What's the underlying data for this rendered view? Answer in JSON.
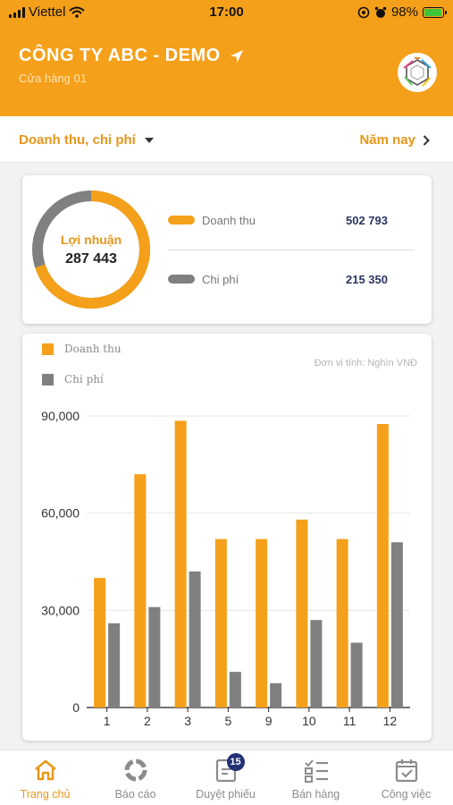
{
  "status_bar": {
    "carrier": "Viettel",
    "time": "17:00",
    "battery": "98%"
  },
  "header": {
    "company": "CÔNG TY ABC - DEMO",
    "store": "Cửa hàng 01"
  },
  "filter": {
    "metric": "Doanh thu, chi phí",
    "period": "Năm nay"
  },
  "summary": {
    "profit_label": "Lợi nhuận",
    "profit_value": "287 443",
    "revenue_label": "Doanh thu",
    "revenue_value": "502 793",
    "cost_label": "Chi phí",
    "cost_value": "215 350"
  },
  "colors": {
    "revenue": "#f5a01a",
    "cost": "#808080",
    "accent": "#e8961a",
    "badge": "#233275"
  },
  "chart_data": {
    "type": "bar",
    "unit_note": "Đơn vị tính: Nghìn VNĐ",
    "categories": [
      "1",
      "2",
      "3",
      "5",
      "9",
      "10",
      "11",
      "12"
    ],
    "series": [
      {
        "name": "Doanh thu",
        "color": "#f5a01a",
        "values": [
          40000,
          72000,
          88500,
          52000,
          52000,
          58000,
          52000,
          87500
        ]
      },
      {
        "name": "Chi phí",
        "color": "#808080",
        "values": [
          26000,
          31000,
          42000,
          11000,
          7500,
          27000,
          20000,
          51000
        ]
      }
    ],
    "yticks": [
      "0",
      "30,000",
      "60,000",
      "90,000"
    ],
    "ytick_values": [
      0,
      30000,
      60000,
      90000
    ],
    "ylim": [
      0,
      90000
    ],
    "legend": "top-left",
    "grid": true
  },
  "tabs": [
    {
      "label": "Trang chủ",
      "icon": "home-icon",
      "active": true
    },
    {
      "label": "Báo cáo",
      "icon": "report-icon"
    },
    {
      "label": "Duyệt phiếu",
      "icon": "approve-icon",
      "badge": "15"
    },
    {
      "label": "Bán hàng",
      "icon": "sales-icon"
    },
    {
      "label": "Công việc",
      "icon": "calendar-icon"
    }
  ]
}
